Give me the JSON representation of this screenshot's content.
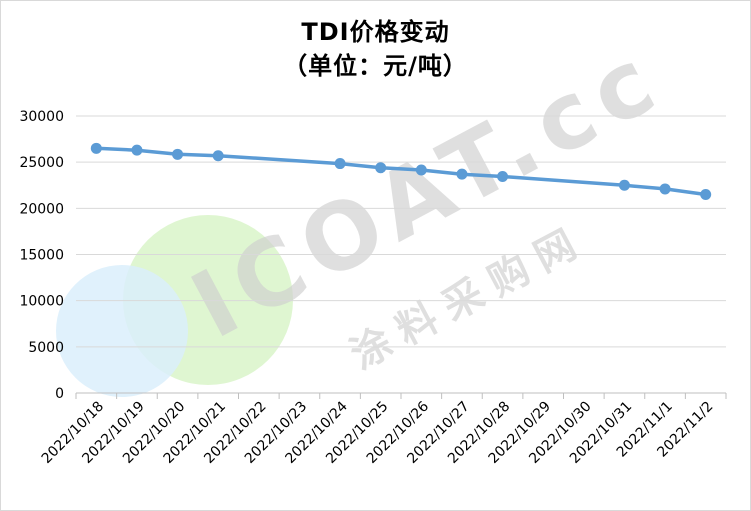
{
  "chart_data": {
    "type": "line",
    "title": "TDI价格变动",
    "subtitle": "（单位：元/吨）",
    "categories": [
      "2022/10/18",
      "2022/10/19",
      "2022/10/20",
      "2022/10/21",
      "2022/10/22",
      "2022/10/23",
      "2022/10/24",
      "2022/10/25",
      "2022/10/26",
      "2022/10/27",
      "2022/10/28",
      "2022/10/29",
      "2022/10/30",
      "2022/10/31",
      "2022/11/1",
      "2022/11/2"
    ],
    "series": [
      {
        "values": [
          26500,
          26300,
          25850,
          25700,
          null,
          null,
          24850,
          24400,
          24150,
          23700,
          23450,
          null,
          null,
          22500,
          22100,
          21500
        ]
      }
    ],
    "ylim": [
      0,
      30000
    ],
    "yticks": [
      0,
      5000,
      10000,
      15000,
      20000,
      25000,
      30000
    ],
    "grid": true,
    "colors": {
      "line": "#5b9bd5",
      "grid": "#d9d9d9"
    }
  },
  "watermark": {
    "text": "ICOAT.cc",
    "subtext": "涂料采购网"
  }
}
